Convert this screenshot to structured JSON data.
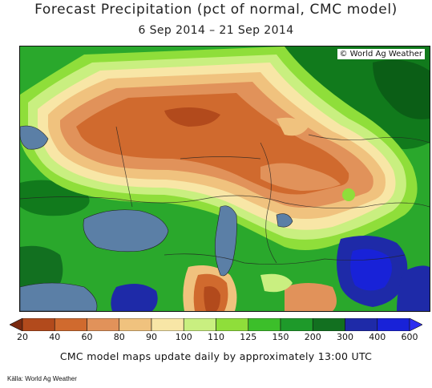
{
  "title": "Forecast Precipitation (pct of normal, CMC model)",
  "date_range": "6 Sep 2014 – 21 Sep 2014",
  "credit": "© World Ag Weather",
  "legend": {
    "ticks": [
      "20",
      "40",
      "60",
      "80",
      "90",
      "100",
      "110",
      "125",
      "150",
      "200",
      "300",
      "400",
      "600"
    ],
    "colors": [
      "#7a2a10",
      "#b24a1c",
      "#d06a2e",
      "#e1925a",
      "#f0c27e",
      "#f8e6a6",
      "#c9ef80",
      "#8fde3a",
      "#3cbf2a",
      "#1e9a2a",
      "#127020",
      "#1e2aa8",
      "#1822d8",
      "#2f2ff0"
    ]
  },
  "footer": "CMC model maps update daily by approximately 13:00 UTC",
  "source": "Källa: World Ag Weather"
}
